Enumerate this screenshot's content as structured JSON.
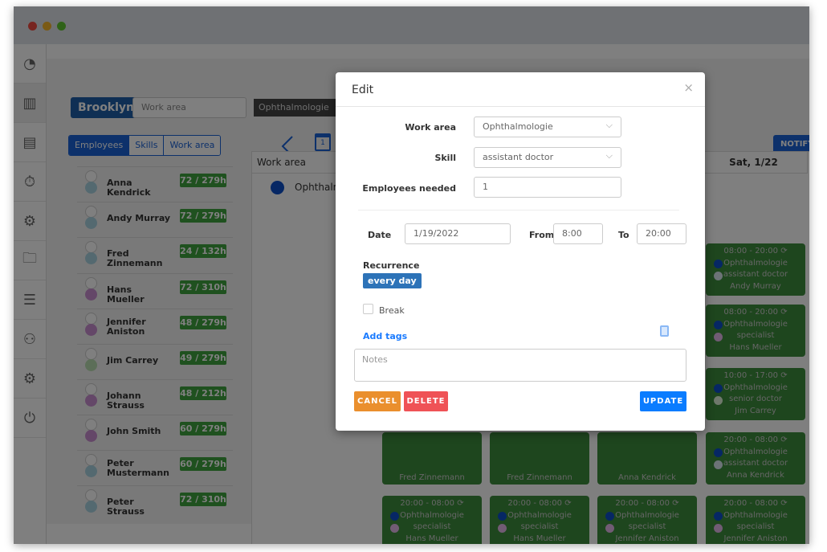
{
  "window": {
    "dots": [
      "#ee4a40",
      "#f5b42a",
      "#5fc531"
    ]
  },
  "sidebar": {
    "items": [
      {
        "icon": "pie-chart-icon"
      },
      {
        "icon": "bar-chart-icon",
        "active": true
      },
      {
        "icon": "binders-icon"
      },
      {
        "icon": "stopwatch-icon"
      },
      {
        "icon": "team-settings-icon"
      },
      {
        "icon": "folder-settings-icon"
      },
      {
        "icon": "list-icon"
      },
      {
        "icon": "user-settings-icon"
      },
      {
        "icon": "gear-icon"
      },
      {
        "icon": "power-icon"
      }
    ]
  },
  "filters": {
    "location": "Brooklyn",
    "work_area_placeholder": "Work area",
    "tag": "Ophthalmologie",
    "tag_close": "X"
  },
  "view_tabs": [
    "Employees",
    "Skills",
    "Work area"
  ],
  "calendar_icon_day": "1",
  "notify_label": "NOTIFY",
  "employees": [
    {
      "name": "Anna Kendrick",
      "hours": "72 / 279h",
      "color": "#a9d3e0"
    },
    {
      "name": "Andy Murray",
      "hours": "72 / 279h",
      "color": "#a9d3e0"
    },
    {
      "name": "Fred Zinnemann",
      "hours": "24 / 132h",
      "color": "#a9d3e0"
    },
    {
      "name": "Hans Mueller",
      "hours": "72 / 310h",
      "color": "#c98fd0"
    },
    {
      "name": "Jennifer Aniston",
      "hours": "48 / 279h",
      "color": "#c98fd0"
    },
    {
      "name": "Jim Carrey",
      "hours": "49 / 279h",
      "color": "#b8dcb0"
    },
    {
      "name": "Johann Strauss",
      "hours": "48 / 212h",
      "color": "#c98fd0"
    },
    {
      "name": "John Smith",
      "hours": "60 / 279h",
      "color": "#c98fd0"
    },
    {
      "name": "Peter Mustermann",
      "hours": "60 / 279h",
      "color": "#a9d3e0"
    },
    {
      "name": "Peter Strauss",
      "hours": "72 / 310h",
      "color": "#a9d3e0"
    }
  ],
  "grid": {
    "work_area_header": "Work area",
    "work_area_row": "Ophthalm",
    "day_header": "Sat, 1/22"
  },
  "shifts_sat": [
    {
      "time": "08:00 - 20:00",
      "area": "Ophthalmologie",
      "skill": "assistant doctor",
      "employee": "Andy Murray",
      "color": "#d9e6ee"
    },
    {
      "time": "08:00 - 20:00",
      "area": "Ophthalmologie",
      "skill": "specialist",
      "employee": "Hans Mueller",
      "color": "#e2b8e8"
    },
    {
      "time": "10:00 - 17:00",
      "area": "Ophthalmologie",
      "skill": "senior doctor",
      "employee": "Jim Carrey",
      "color": "#dff0d8"
    },
    {
      "time": "20:00 - 08:00",
      "area": "Ophthalmologie",
      "skill": "assistant doctor",
      "employee": "Anna Kendrick",
      "color": "#d9e6ee"
    },
    {
      "time": "20:00 - 08:00",
      "area": "Ophthalmologie",
      "skill": "specialist",
      "employee": "Jennifer Aniston",
      "color": "#e2b8e8"
    }
  ],
  "shifts_partial": [
    "Fred Zinnemann",
    "Fred Zinnemann",
    "Anna Kendrick"
  ],
  "shifts_bottom": [
    {
      "time": "20:00 - 08:00",
      "area": "Ophthalmologie",
      "skill": "specialist",
      "employee": "Hans Mueller"
    },
    {
      "time": "20:00 - 08:00",
      "area": "Ophthalmologie",
      "skill": "specialist",
      "employee": "Hans Mueller"
    },
    {
      "time": "20:00 - 08:00",
      "area": "Ophthalmologie",
      "skill": "specialist",
      "employee": "Jennifer Aniston"
    }
  ],
  "modal": {
    "title": "Edit",
    "close": "×",
    "work_area_label": "Work area",
    "work_area_value": "Ophthalmologie",
    "skill_label": "Skill",
    "skill_value": "assistant doctor",
    "employees_needed_label": "Employees needed",
    "employees_needed_value": "1",
    "date_label": "Date",
    "date_value": "1/19/2022",
    "from_label": "From",
    "from_value": "8:00",
    "to_label": "To",
    "to_value": "20:00",
    "recurrence_label": "Recurrence",
    "recurrence_value": "every day",
    "break_label": "Break",
    "break_checked": false,
    "add_tags": "Add tags",
    "notes_placeholder": "Notes",
    "cancel": "CANCEL",
    "delete": "DELETE",
    "update": "UPDATE",
    "colors": {
      "cancel": "#ea8f2d",
      "delete": "#ef5256",
      "update": "#0a7cff",
      "link": "#1a7bff"
    }
  }
}
